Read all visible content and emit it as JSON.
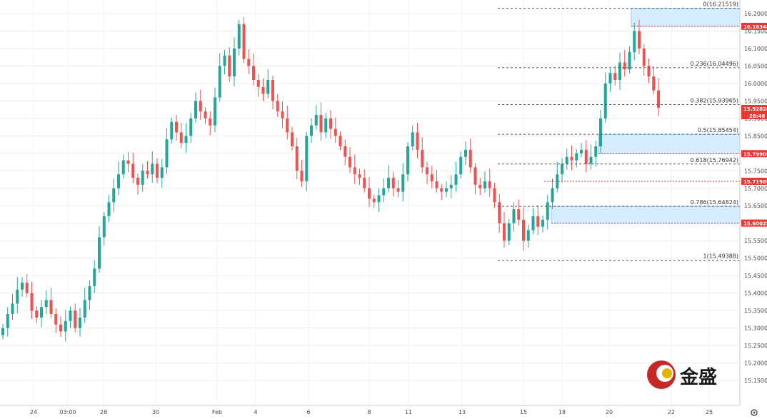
{
  "chart_data": {
    "type": "candlestick",
    "instrument_note": "",
    "colors": {
      "up": "#26a69a",
      "down": "#ef5350",
      "fib_line": "#555555",
      "zone_fill": "#d6ecff",
      "zone_stroke": "#9cc8ef",
      "red_line": "#e53935",
      "tag_red": "#e53935",
      "grid": "#eeeeee"
    },
    "y_axis": {
      "min": 15.125,
      "max": 16.225,
      "ticks": [
        "16.20000",
        "16.15000",
        "16.10000",
        "16.05000",
        "16.00000",
        "15.95000",
        "15.90000",
        "15.85000",
        "15.80000",
        "15.75000",
        "15.70000",
        "15.65000",
        "15.60000",
        "15.55000",
        "15.50000",
        "15.45000",
        "15.40000",
        "15.35000",
        "15.30000",
        "15.25000",
        "15.20000",
        "15.15000"
      ]
    },
    "x_axis": {
      "ticks": [
        "24",
        "03:00",
        "28",
        "30",
        "Feb",
        "4",
        "6",
        "8",
        "11",
        "13",
        "15",
        "18",
        "20",
        "22",
        "25"
      ]
    },
    "fib_levels": [
      {
        "label": "0(16.21519)",
        "value": 16.21519
      },
      {
        "label": "0.236(16.04496)",
        "value": 16.04496
      },
      {
        "label": "0.382(15.93965)",
        "value": 15.93965
      },
      {
        "label": "0.5(15.85454)",
        "value": 15.85454
      },
      {
        "label": "0.618(15.76942)",
        "value": 15.76942
      },
      {
        "label": "0.786(15.64824)",
        "value": 15.64824
      },
      {
        "label": "1(15.49388)",
        "value": 15.49388
      }
    ],
    "zones": [
      {
        "top": 16.21519,
        "bottom": 16.16344
      },
      {
        "top": 15.85454,
        "bottom": 15.79909
      },
      {
        "top": 15.64824,
        "bottom": 15.60029
      }
    ],
    "red_lines": [
      16.16344,
      15.79909,
      15.71989,
      15.60029
    ],
    "price_tags": [
      {
        "value": 16.16344,
        "label": "16.16344"
      },
      {
        "value": 15.92828,
        "label": "15.92828",
        "sub": "28:48"
      },
      {
        "value": 15.79909,
        "label": "15.79909"
      },
      {
        "value": 15.71989,
        "label": "15.71989"
      },
      {
        "value": 15.60029,
        "label": "15.60029"
      }
    ],
    "close_path": [
      15.3,
      15.34,
      15.37,
      15.41,
      15.43,
      15.4,
      15.35,
      15.33,
      15.36,
      15.38,
      15.34,
      15.31,
      15.29,
      15.32,
      15.35,
      15.3,
      15.33,
      15.38,
      15.42,
      15.47,
      15.56,
      15.62,
      15.66,
      15.7,
      15.74,
      15.78,
      15.77,
      15.73,
      15.71,
      15.75,
      15.74,
      15.77,
      15.73,
      15.76,
      15.84,
      15.89,
      15.86,
      15.83,
      15.85,
      15.9,
      15.95,
      15.92,
      15.9,
      15.88,
      15.96,
      16.05,
      16.08,
      16.02,
      16.1,
      16.17,
      16.07,
      16.05,
      16.01,
      15.99,
      15.97,
      16.01,
      15.95,
      15.92,
      15.9,
      15.86,
      15.82,
      15.75,
      15.72,
      15.85,
      15.88,
      15.91,
      15.86,
      15.9,
      15.87,
      15.85,
      15.82,
      15.79,
      15.76,
      15.74,
      15.73,
      15.7,
      15.67,
      15.66,
      15.68,
      15.7,
      15.73,
      15.7,
      15.69,
      15.74,
      15.82,
      15.86,
      15.81,
      15.76,
      15.74,
      15.72,
      15.7,
      15.69,
      15.7,
      15.71,
      15.74,
      15.79,
      15.81,
      15.76,
      15.71,
      15.7,
      15.72,
      15.7,
      15.66,
      15.6,
      15.55,
      15.6,
      15.64,
      15.61,
      15.55,
      15.58,
      15.62,
      15.59,
      15.61,
      15.66,
      15.7,
      15.74,
      15.77,
      15.79,
      15.78,
      15.8,
      15.81,
      15.77,
      15.79,
      15.82,
      15.9,
      16.0,
      16.03,
      16.01,
      16.06,
      16.04,
      16.09,
      16.15,
      16.1,
      16.05,
      16.02,
      15.98,
      15.93
    ]
  },
  "watermark": {
    "text": "金盛"
  }
}
